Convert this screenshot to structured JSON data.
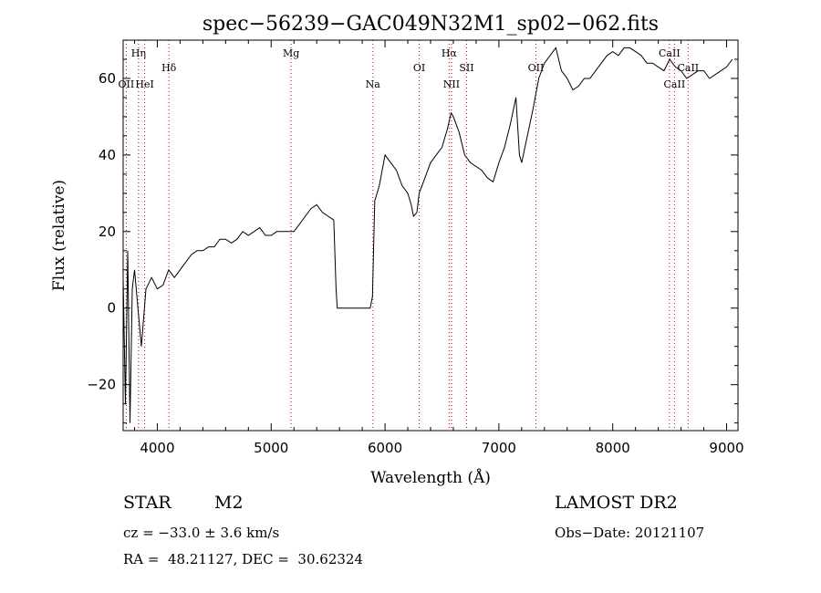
{
  "chart_data": {
    "type": "line",
    "title": "spec−56239−GAC049N32M1_sp02−062.fits",
    "xlabel": "Wavelength (Å)",
    "ylabel": "Flux (relative)",
    "xlim": [
      3700,
      9100
    ],
    "ylim": [
      -32,
      70
    ],
    "xticks": [
      4000,
      5000,
      6000,
      7000,
      8000,
      9000
    ],
    "xtick_labels": [
      "4000",
      "5000",
      "6000",
      "7000",
      "8000",
      "9000"
    ],
    "yticks": [
      -20,
      0,
      20,
      40,
      60
    ],
    "ytick_labels": [
      "−20",
      "0",
      "20",
      "40",
      "60"
    ],
    "series": [
      {
        "x": [
          3700,
          3720,
          3740,
          3760,
          3780,
          3800,
          3830,
          3860,
          3900,
          3950,
          4000,
          4050,
          4100,
          4150,
          4200,
          4250,
          4300,
          4350,
          4400,
          4450,
          4500,
          4550,
          4600,
          4650,
          4700,
          4750,
          4800,
          4850,
          4900,
          4950,
          5000,
          5050,
          5100,
          5150,
          5200,
          5250,
          5300,
          5350,
          5400,
          5450,
          5500,
          5550,
          5570,
          5580,
          5600,
          5700,
          5800,
          5870,
          5890,
          5910,
          5950,
          6000,
          6050,
          6100,
          6150,
          6200,
          6230,
          6250,
          6280,
          6300,
          6350,
          6400,
          6450,
          6500,
          6550,
          6580,
          6600,
          6650,
          6700,
          6750,
          6800,
          6850,
          6900,
          6950,
          7000,
          7050,
          7100,
          7150,
          7180,
          7200,
          7250,
          7300,
          7350,
          7400,
          7450,
          7500,
          7550,
          7600,
          7650,
          7700,
          7750,
          7800,
          7850,
          7900,
          7950,
          8000,
          8050,
          8100,
          8150,
          8200,
          8250,
          8300,
          8350,
          8400,
          8450,
          8500,
          8550,
          8600,
          8650,
          8700,
          8750,
          8800,
          8850,
          8900,
          8950,
          9000,
          9050
        ],
        "y": [
          8,
          -25,
          15,
          -30,
          5,
          10,
          0,
          -10,
          5,
          8,
          5,
          6,
          10,
          8,
          10,
          12,
          14,
          15,
          15,
          16,
          16,
          18,
          18,
          17,
          18,
          20,
          19,
          20,
          21,
          19,
          19,
          20,
          20,
          20,
          20,
          22,
          24,
          26,
          27,
          25,
          24,
          23,
          5,
          0,
          0,
          0,
          0,
          0,
          3,
          28,
          32,
          40,
          38,
          36,
          32,
          30,
          27,
          24,
          25,
          30,
          34,
          38,
          40,
          42,
          47,
          51,
          50,
          46,
          40,
          38,
          37,
          36,
          34,
          33,
          38,
          42,
          48,
          55,
          40,
          38,
          45,
          52,
          60,
          64,
          66,
          68,
          62,
          60,
          57,
          58,
          60,
          60,
          62,
          64,
          66,
          67,
          66,
          68,
          68,
          67,
          66,
          64,
          64,
          63,
          62,
          65,
          63,
          62,
          60,
          61,
          62,
          62,
          60,
          61,
          62,
          63,
          65
        ]
      }
    ],
    "lines": [
      {
        "name": "OII",
        "x": 3727,
        "label_pos": "low"
      },
      {
        "name": "Hη",
        "x": 3835,
        "label_pos": "high"
      },
      {
        "name": "HeI",
        "x": 3889,
        "label_pos": "low"
      },
      {
        "name": "Hδ",
        "x": 4102,
        "label_pos": "mid"
      },
      {
        "name": "Mg",
        "x": 5175,
        "label_pos": "high"
      },
      {
        "name": "Na",
        "x": 5893,
        "label_pos": "low"
      },
      {
        "name": "OI",
        "x": 6300,
        "label_pos": "mid"
      },
      {
        "name": "Hα",
        "x": 6563,
        "label_pos": "high"
      },
      {
        "name": "NII",
        "x": 6584,
        "label_pos": "low"
      },
      {
        "name": "SII",
        "x": 6716,
        "label_pos": "mid"
      },
      {
        "name": "OII",
        "x": 7325,
        "label_pos": "mid"
      },
      {
        "name": "CaII",
        "x": 8498,
        "label_pos": "high"
      },
      {
        "name": "CaII",
        "x": 8542,
        "label_pos": "low"
      },
      {
        "name": "CaII",
        "x": 8662,
        "label_pos": "mid"
      }
    ],
    "grid": false,
    "legend": "none"
  },
  "info": {
    "object_class": "STAR",
    "subclass": "M2",
    "survey": "LAMOST DR2",
    "cz": "cz = −33.0 ± 3.6 km/s",
    "obs_date": "Obs−Date: 20121107",
    "coords": "RA =  48.21127, DEC =  30.62324"
  }
}
